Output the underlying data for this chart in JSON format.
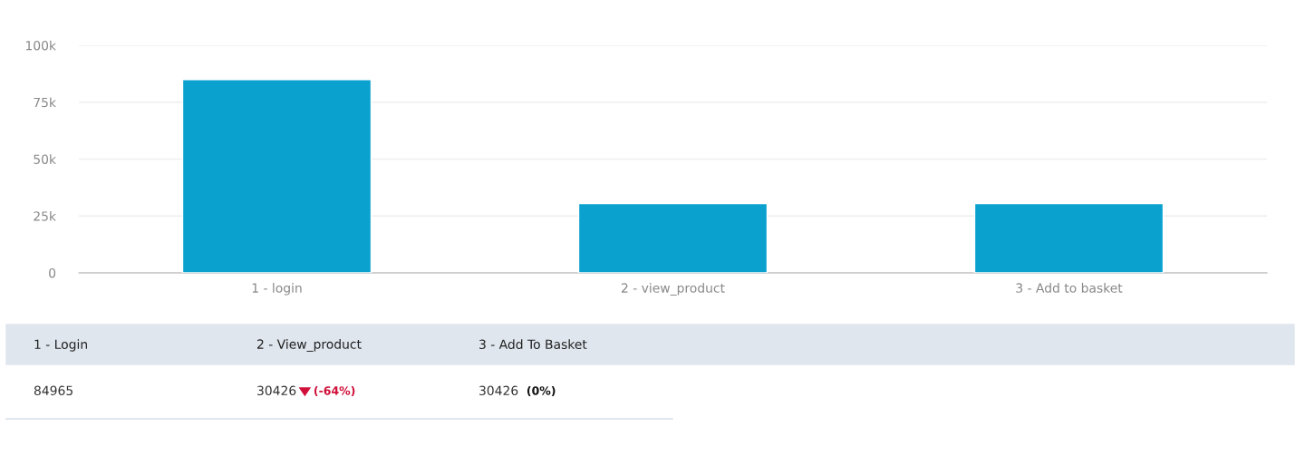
{
  "chart_data": {
    "type": "bar",
    "categories": [
      "1 - login",
      "2 - view_product",
      "3 - Add to basket"
    ],
    "values": [
      84965,
      30426,
      30426
    ],
    "color": "#0aa1cf",
    "ylim": [
      0,
      100000
    ],
    "yticks": [
      {
        "value": 0,
        "label": "0"
      },
      {
        "value": 25000,
        "label": "25k"
      },
      {
        "value": 50000,
        "label": "50k"
      },
      {
        "value": 75000,
        "label": "75k"
      },
      {
        "value": 100000,
        "label": "100k"
      }
    ],
    "grid": "y",
    "annotations": [
      "1 - Login",
      "2 - View_product",
      "3 - Add To Basket",
      "84965",
      "30426",
      "30426",
      "(-64%)",
      "(0%)"
    ]
  }
}
